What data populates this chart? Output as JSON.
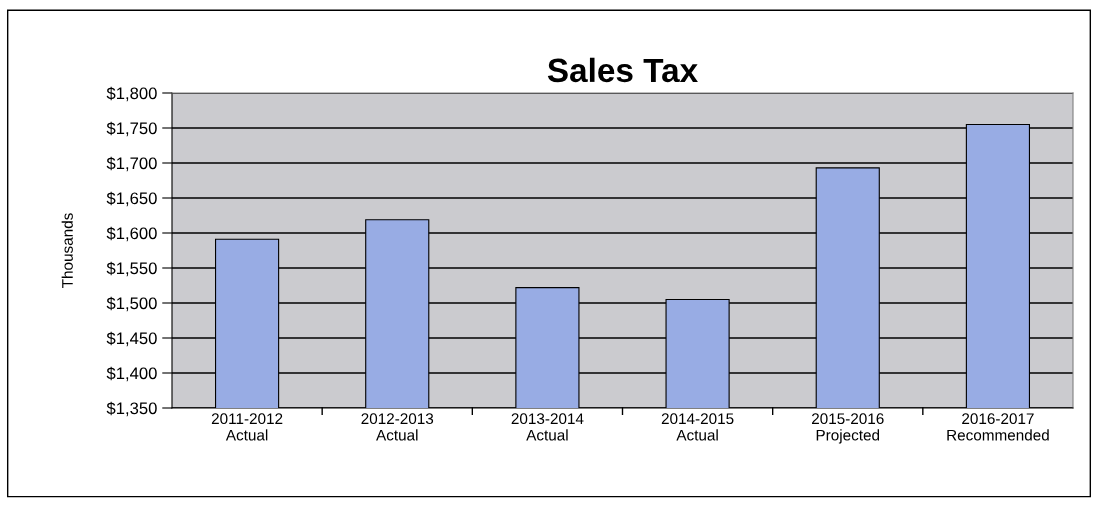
{
  "chart_data": {
    "type": "bar",
    "title": "Sales Tax",
    "ylabel": "Thousands",
    "categories": [
      "2011-2012\nActual",
      "2012-2013\nActual",
      "2013-2014\nActual",
      "2014-2015\nActual",
      "2015-2016\nProjected",
      "2016-2017\nRecommended"
    ],
    "values": [
      1591,
      1619,
      1522,
      1505,
      1693,
      1755
    ],
    "color": "#98ace4",
    "ylim": [
      1350,
      1800
    ],
    "yticks": [
      {
        "value": 1350,
        "label": "$1,350"
      },
      {
        "value": 1400,
        "label": "$1,400"
      },
      {
        "value": 1450,
        "label": "$1,450"
      },
      {
        "value": 1500,
        "label": "$1,500"
      },
      {
        "value": 1550,
        "label": "$1,550"
      },
      {
        "value": 1600,
        "label": "$1,600"
      },
      {
        "value": 1650,
        "label": "$1,650"
      },
      {
        "value": 1700,
        "label": "$1,700"
      },
      {
        "value": 1750,
        "label": "$1,750"
      },
      {
        "value": 1800,
        "label": "$1,800"
      }
    ],
    "grid": "y"
  }
}
